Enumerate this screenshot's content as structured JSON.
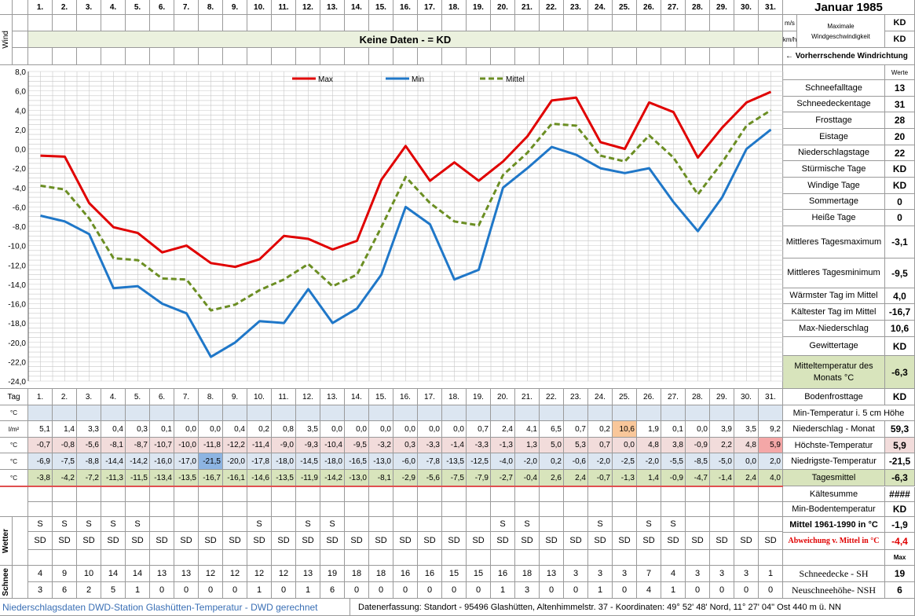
{
  "title": "Januar 1985",
  "days": [
    "1.",
    "2.",
    "3.",
    "4.",
    "5.",
    "6.",
    "7.",
    "8.",
    "9.",
    "10.",
    "11.",
    "12.",
    "13.",
    "14.",
    "15.",
    "16.",
    "17.",
    "18.",
    "19.",
    "20.",
    "21.",
    "22.",
    "23.",
    "24.",
    "25.",
    "26.",
    "27.",
    "28.",
    "29.",
    "30.",
    "31."
  ],
  "wind": {
    "label": "Wind",
    "no_data": "Keine Daten -  = KD",
    "unit_ms": "m/s",
    "unit_kmh": "km/h",
    "max_label": "Maximale Windgeschwindigkeit",
    "ms_value": "KD",
    "kmh_value": "KD",
    "direction_label": "← Vorherrschende Windrichtung"
  },
  "stats_header": "Werte",
  "stats": [
    {
      "label": "Schneefalltage",
      "value": "13"
    },
    {
      "label": "Schneedeckentage",
      "value": "31"
    },
    {
      "label": "Frosttage",
      "value": "28"
    },
    {
      "label": "Eistage",
      "value": "20"
    },
    {
      "label": "Niederschlagstage",
      "value": "22"
    },
    {
      "label": "Stürmische Tage",
      "value": "KD"
    },
    {
      "label": "Windige Tage",
      "value": "KD"
    },
    {
      "label": "Sommertage",
      "value": "0"
    },
    {
      "label": "Heiße Tage",
      "value": "0"
    },
    {
      "label": "Mittleres Tagesmaximum",
      "value": "-3,1"
    },
    {
      "label": "Mittleres Tagesminimum",
      "value": "-9,5"
    },
    {
      "label": "Wärmster Tag im Mittel",
      "value": "4,0"
    },
    {
      "label": "Kältester Tag im Mittel",
      "value": "-16,7"
    },
    {
      "label": "Max-Niederschlag",
      "value": "10,6"
    },
    {
      "label": "Gewittertage",
      "value": "KD"
    },
    {
      "label": "Mitteltemperatur des Monats °C",
      "value": "-6,3"
    },
    {
      "label": "Bodenfrosttage",
      "value": "KD"
    }
  ],
  "table": {
    "tag_label": "Tag",
    "unit_c": "°C",
    "unit_lm2": "l/m²",
    "min_5cm_label": "Min-Temperatur i. 5 cm Höhe",
    "niederschlag": {
      "label": "Niederschlag - Monat",
      "total": "59,3",
      "values": [
        "5,1",
        "1,4",
        "3,3",
        "0,4",
        "0,3",
        "0,1",
        "0,0",
        "0,0",
        "0,4",
        "0,2",
        "0,8",
        "3,5",
        "0,0",
        "0,0",
        "0,0",
        "0,0",
        "0,0",
        "0,0",
        "0,7",
        "2,4",
        "4,1",
        "6,5",
        "0,7",
        "0,2",
        "10,6",
        "1,9",
        "0,1",
        "0,0",
        "3,9",
        "3,5",
        "9,2"
      ]
    },
    "max": {
      "label": "Höchste-Temperatur",
      "total": "5,9",
      "values": [
        "-0,7",
        "-0,8",
        "-5,6",
        "-8,1",
        "-8,7",
        "-10,7",
        "-10,0",
        "-11,8",
        "-12,2",
        "-11,4",
        "-9,0",
        "-9,3",
        "-10,4",
        "-9,5",
        "-3,2",
        "0,3",
        "-3,3",
        "-1,4",
        "-3,3",
        "-1,3",
        "1,3",
        "5,0",
        "5,3",
        "0,7",
        "0,0",
        "4,8",
        "3,8",
        "-0,9",
        "2,2",
        "4,8",
        "5,9"
      ]
    },
    "min": {
      "label": "Niedrigste-Temperatur",
      "total": "-21,5",
      "values": [
        "-6,9",
        "-7,5",
        "-8,8",
        "-14,4",
        "-14,2",
        "-16,0",
        "-17,0",
        "-21,5",
        "-20,0",
        "-17,8",
        "-18,0",
        "-14,5",
        "-18,0",
        "-16,5",
        "-13,0",
        "-6,0",
        "-7,8",
        "-13,5",
        "-12,5",
        "-4,0",
        "-2,0",
        "0,2",
        "-0,6",
        "-2,0",
        "-2,5",
        "-2,0",
        "-5,5",
        "-8,5",
        "-5,0",
        "0,0",
        "2,0"
      ]
    },
    "mittel": {
      "label": "Tagesmittel",
      "total": "-6,3",
      "values": [
        "-3,8",
        "-4,2",
        "-7,2",
        "-11,3",
        "-11,5",
        "-13,4",
        "-13,5",
        "-16,7",
        "-16,1",
        "-14,6",
        "-13,5",
        "-11,9",
        "-14,2",
        "-13,0",
        "-8,1",
        "-2,9",
        "-5,6",
        "-7,5",
        "-7,9",
        "-2,7",
        "-0,4",
        "2,6",
        "2,4",
        "-0,7",
        "-1,3",
        "1,4",
        "-0,9",
        "-4,7",
        "-1,4",
        "2,4",
        "4,0"
      ]
    },
    "kaeltesumme": {
      "label": "Kältesumme",
      "value": "####"
    },
    "min_boden": {
      "label": "Min-Bodentemperatur",
      "value": "KD"
    },
    "mittel_1961": {
      "label": "Mittel 1961-1990 in °C",
      "value": "-1,9"
    },
    "abweichung": {
      "label": "Abweichung v. Mittel in °C",
      "value": "-4,4"
    }
  },
  "wetter": {
    "label": "Wetter",
    "row1": [
      "S",
      "S",
      "S",
      "S",
      "S",
      "",
      "",
      "",
      "",
      "S",
      "",
      "S",
      "S",
      "",
      "",
      "",
      "",
      "",
      "",
      "S",
      "S",
      "",
      "",
      "S",
      "",
      "S",
      "S",
      "",
      "",
      "",
      ""
    ],
    "row2": [
      "SD",
      "SD",
      "SD",
      "SD",
      "SD",
      "SD",
      "SD",
      "SD",
      "SD",
      "SD",
      "SD",
      "SD",
      "SD",
      "SD",
      "SD",
      "SD",
      "SD",
      "SD",
      "SD",
      "SD",
      "SD",
      "SD",
      "SD",
      "SD",
      "SD",
      "SD",
      "SD",
      "SD",
      "SD",
      "SD",
      "SD"
    ]
  },
  "schnee": {
    "label": "Schnee",
    "max_label": "Max",
    "sh": {
      "label": "Schneedecke -  SH",
      "max": "19",
      "values": [
        "4",
        "9",
        "10",
        "14",
        "14",
        "13",
        "13",
        "12",
        "12",
        "12",
        "12",
        "13",
        "19",
        "18",
        "18",
        "16",
        "16",
        "15",
        "15",
        "16",
        "18",
        "13",
        "3",
        "3",
        "3",
        "7",
        "4",
        "3",
        "3",
        "3",
        "1"
      ]
    },
    "nsh": {
      "label": "Neuschneehöhe- NSH",
      "max": "6",
      "values": [
        "3",
        "6",
        "2",
        "5",
        "1",
        "0",
        "0",
        "0",
        "0",
        "1",
        "0",
        "1",
        "6",
        "0",
        "0",
        "0",
        "0",
        "0",
        "0",
        "1",
        "3",
        "0",
        "0",
        "1",
        "0",
        "4",
        "1",
        "0",
        "0",
        "0",
        "0"
      ]
    }
  },
  "footer": {
    "left": "Niederschlagsdaten DWD-Station Glashütten-Temperatur -  DWD gerechnet",
    "right": "Datenerfassung: Standort -  95496  Glashütten, Altenhimmelstr. 37 - Koordinaten: 49° 52' 48' Nord,  11° 27' 04\" Ost  440 m ü. NN"
  },
  "chart_data": {
    "type": "line",
    "x": [
      1,
      2,
      3,
      4,
      5,
      6,
      7,
      8,
      9,
      10,
      11,
      12,
      13,
      14,
      15,
      16,
      17,
      18,
      19,
      20,
      21,
      22,
      23,
      24,
      25,
      26,
      27,
      28,
      29,
      30,
      31
    ],
    "ylim": [
      -24,
      8
    ],
    "yticks": [
      "8,0",
      "6,0",
      "4,0",
      "2,0",
      "0,0",
      "-2,0",
      "-4,0",
      "-6,0",
      "-8,0",
      "-10,0",
      "-12,0",
      "-14,0",
      "-16,0",
      "-18,0",
      "-20,0",
      "-22,0",
      "-24,0"
    ],
    "grid": true,
    "legend_position": "top",
    "series": [
      {
        "name": "Max",
        "color": "#e00000",
        "dash": false,
        "values": [
          -0.7,
          -0.8,
          -5.6,
          -8.1,
          -8.7,
          -10.7,
          -10.0,
          -11.8,
          -12.2,
          -11.4,
          -9.0,
          -9.3,
          -10.4,
          -9.5,
          -3.2,
          0.3,
          -3.3,
          -1.4,
          -3.3,
          -1.3,
          1.3,
          5.0,
          5.3,
          0.7,
          0.0,
          4.8,
          3.8,
          -0.9,
          2.2,
          4.8,
          5.9
        ]
      },
      {
        "name": "Min",
        "color": "#1f77c8",
        "dash": false,
        "values": [
          -6.9,
          -7.5,
          -8.8,
          -14.4,
          -14.2,
          -16.0,
          -17.0,
          -21.5,
          -20.0,
          -17.8,
          -18.0,
          -14.5,
          -18.0,
          -16.5,
          -13.0,
          -6.0,
          -7.8,
          -13.5,
          -12.5,
          -4.0,
          -2.0,
          0.2,
          -0.6,
          -2.0,
          -2.5,
          -2.0,
          -5.5,
          -8.5,
          -5.0,
          0.0,
          2.0
        ]
      },
      {
        "name": "Mittel",
        "color": "#6b8e23",
        "dash": true,
        "values": [
          -3.8,
          -4.2,
          -7.2,
          -11.3,
          -11.5,
          -13.4,
          -13.5,
          -16.7,
          -16.1,
          -14.6,
          -13.5,
          -11.9,
          -14.2,
          -13.0,
          -8.1,
          -2.9,
          -5.6,
          -7.5,
          -7.9,
          -2.7,
          -0.4,
          2.6,
          2.4,
          -0.7,
          -1.3,
          1.4,
          -0.9,
          -4.7,
          -1.4,
          2.4,
          4.0
        ]
      }
    ]
  }
}
